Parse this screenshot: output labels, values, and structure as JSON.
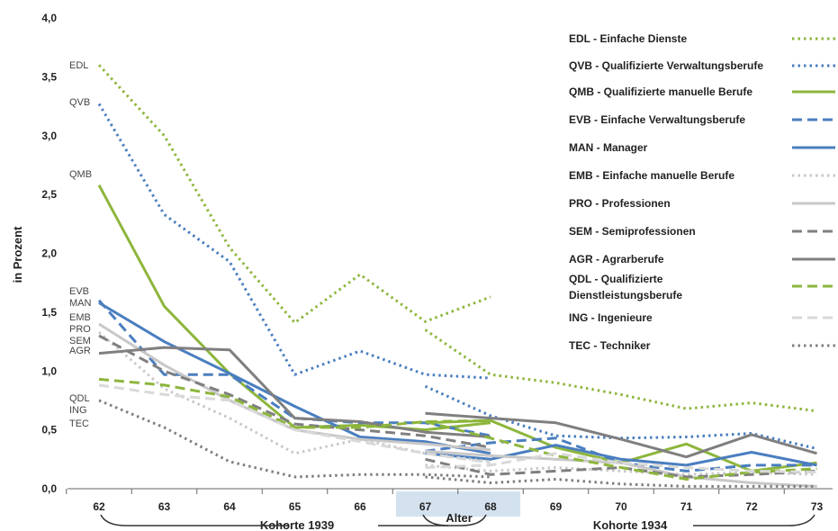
{
  "chart_data": {
    "type": "line",
    "ylabel": "in Prozent",
    "ylim": [
      0,
      4
    ],
    "y_ticks": [
      "0,0",
      "0,5",
      "1,0",
      "1,5",
      "2,0",
      "2,5",
      "3,0",
      "3,5",
      "4,0"
    ],
    "x": [
      62,
      63,
      64,
      65,
      66,
      67,
      68,
      69,
      70,
      71,
      72,
      73
    ],
    "x_ticks": [
      "62",
      "63",
      "64",
      "65",
      "66",
      "67",
      "68",
      "69",
      "70",
      "71",
      "72",
      "73"
    ],
    "cohort_labels": [
      "Kohorte 1939",
      "Kohorte 1934"
    ],
    "alter_label": "Alter",
    "grid": "off",
    "legend_position": "right",
    "series": [
      {
        "code": "EDL",
        "name": "EDL - Einfache Dienste",
        "color": "#8db63c",
        "style": "dotted",
        "in_chart_label": "EDL",
        "cohort1939": {
          "x": [
            62,
            63,
            64,
            65,
            66,
            67,
            68
          ],
          "y": [
            3.6,
            3.0,
            2.05,
            1.41,
            1.82,
            1.42,
            1.63
          ]
        },
        "cohort1934": {
          "x": [
            67,
            68,
            69,
            70,
            71,
            72,
            73
          ],
          "y": [
            1.35,
            0.97,
            0.9,
            0.8,
            0.68,
            0.73,
            0.66
          ]
        }
      },
      {
        "code": "QVB",
        "name": "QVB - Qualifizierte Verwaltungsberufe",
        "color": "#4a7ebf",
        "style": "dotted",
        "in_chart_label": "QVB",
        "cohort1939": {
          "x": [
            62,
            63,
            64,
            65,
            66,
            67,
            68
          ],
          "y": [
            3.27,
            2.33,
            1.93,
            0.97,
            1.17,
            0.97,
            0.94
          ]
        },
        "cohort1934": {
          "x": [
            67,
            68,
            69,
            70,
            71,
            72,
            73
          ],
          "y": [
            0.87,
            0.62,
            0.45,
            0.43,
            0.44,
            0.47,
            0.34
          ]
        }
      },
      {
        "code": "QMB",
        "name": "QMB - Qualifizierte manuelle Berufe",
        "color": "#8db63c",
        "style": "solid",
        "in_chart_label": "QMB",
        "cohort1939": {
          "x": [
            62,
            63,
            64,
            65,
            66,
            67,
            68
          ],
          "y": [
            2.58,
            1.55,
            0.98,
            0.52,
            0.54,
            0.5,
            0.56
          ]
        },
        "cohort1934": {
          "x": [
            67,
            68,
            69,
            70,
            71,
            72,
            73
          ],
          "y": [
            0.56,
            0.58,
            0.35,
            0.22,
            0.38,
            0.15,
            0.22
          ]
        }
      },
      {
        "code": "EVB",
        "name": "EVB - Einfache Verwaltungsberufe",
        "color": "#4a7ebf",
        "style": "dashed",
        "in_chart_label": "EVB",
        "cohort1939": {
          "x": [
            62,
            63,
            64,
            65,
            66,
            67,
            68
          ],
          "y": [
            1.6,
            0.97,
            0.97,
            0.6,
            0.56,
            0.56,
            0.45
          ]
        },
        "cohort1934": {
          "x": [
            67,
            68,
            69,
            70,
            71,
            72,
            73
          ],
          "y": [
            0.32,
            0.39,
            0.43,
            0.22,
            0.15,
            0.2,
            0.2
          ]
        }
      },
      {
        "code": "MAN",
        "name": "MAN - Manager",
        "color": "#4a7ebf",
        "style": "solid",
        "in_chart_label": "MAN",
        "cohort1939": {
          "x": [
            62,
            63,
            64,
            65,
            66,
            67,
            68
          ],
          "y": [
            1.58,
            1.25,
            0.98,
            0.7,
            0.44,
            0.4,
            0.3
          ]
        },
        "cohort1934": {
          "x": [
            67,
            68,
            69,
            70,
            71,
            72,
            73
          ],
          "y": [
            0.3,
            0.25,
            0.37,
            0.25,
            0.2,
            0.31,
            0.2
          ]
        }
      },
      {
        "code": "EMB",
        "name": "EMB - Einfache manuelle Berufe",
        "color": "#c8c8c8",
        "style": "dotted",
        "in_chart_label": "EMB",
        "cohort1939": {
          "x": [
            62,
            63,
            64,
            65,
            66,
            67,
            68
          ],
          "y": [
            1.33,
            0.85,
            0.6,
            0.3,
            0.42,
            0.3,
            0.23
          ]
        },
        "cohort1934": {
          "x": [
            67,
            68,
            69,
            70,
            71,
            72,
            73
          ],
          "y": [
            0.2,
            0.15,
            0.18,
            0.15,
            0.12,
            0.14,
            0.12
          ]
        }
      },
      {
        "code": "PRO",
        "name": "PRO - Professionen",
        "color": "#c8c8c8",
        "style": "solid",
        "in_chart_label": "PRO",
        "cohort1939": {
          "x": [
            62,
            63,
            64,
            65,
            66,
            67,
            68
          ],
          "y": [
            1.4,
            1.05,
            0.75,
            0.5,
            0.42,
            0.38,
            0.33
          ]
        },
        "cohort1934": {
          "x": [
            67,
            68,
            69,
            70,
            71,
            72,
            73
          ],
          "y": [
            0.32,
            0.28,
            0.25,
            0.22,
            0.1,
            0.05,
            0.02
          ]
        }
      },
      {
        "code": "SEM",
        "name": "SEM - Semiprofessionen",
        "color": "#7f7f7f",
        "style": "dashed",
        "in_chart_label": "SEM",
        "cohort1939": {
          "x": [
            62,
            63,
            64,
            65,
            66,
            67,
            68
          ],
          "y": [
            1.3,
            1.0,
            0.8,
            0.55,
            0.5,
            0.45,
            0.35
          ]
        },
        "cohort1934": {
          "x": [
            67,
            68,
            69,
            70,
            71,
            72,
            73
          ],
          "y": [
            0.25,
            0.12,
            0.15,
            0.18,
            0.1,
            0.12,
            0.15
          ]
        }
      },
      {
        "code": "AGR",
        "name": "AGR - Agrarberufe",
        "color": "#7f7f7f",
        "style": "solid",
        "in_chart_label": "AGR",
        "cohort1939": {
          "x": [
            62,
            63,
            64,
            65,
            66,
            67,
            68
          ],
          "y": [
            1.15,
            1.2,
            1.18,
            0.6,
            0.57,
            0.48,
            0.44
          ]
        },
        "cohort1934": {
          "x": [
            67,
            68,
            69,
            70,
            71,
            72,
            73
          ],
          "y": [
            0.64,
            0.6,
            0.56,
            0.42,
            0.27,
            0.46,
            0.3
          ]
        }
      },
      {
        "code": "QDL",
        "name": "QDL - Qualifizierte Dienstleistungsberufe",
        "name_lines": [
          "QDL - Qualifizierte",
          "Dienstleistungsberufe"
        ],
        "color": "#8db63c",
        "style": "dashed",
        "in_chart_label": "QDL",
        "cohort1939": {
          "x": [
            62,
            63,
            64,
            65,
            66,
            67,
            68
          ],
          "y": [
            0.93,
            0.88,
            0.78,
            0.52,
            0.52,
            0.57,
            0.58
          ]
        },
        "cohort1934": {
          "x": [
            67,
            68,
            69,
            70,
            71,
            72,
            73
          ],
          "y": [
            0.57,
            0.43,
            0.28,
            0.18,
            0.08,
            0.14,
            0.17
          ]
        }
      },
      {
        "code": "ING",
        "name": "ING - Ingenieure",
        "color": "#d9d9d9",
        "style": "dashed",
        "in_chart_label": "ING",
        "cohort1939": {
          "x": [
            62,
            63,
            64,
            65,
            66,
            67,
            68
          ],
          "y": [
            0.88,
            0.8,
            0.75,
            0.5,
            0.4,
            0.3,
            0.22
          ]
        },
        "cohort1934": {
          "x": [
            67,
            68,
            69,
            70,
            71,
            72,
            73
          ],
          "y": [
            0.18,
            0.2,
            0.3,
            0.22,
            0.18,
            0.15,
            0.14
          ]
        }
      },
      {
        "code": "TEC",
        "name": "TEC - Techniker",
        "color": "#7f7f7f",
        "style": "dotted",
        "in_chart_label": "TEC",
        "cohort1939": {
          "x": [
            62,
            63,
            64,
            65,
            66,
            67,
            68
          ],
          "y": [
            0.75,
            0.52,
            0.23,
            0.1,
            0.12,
            0.12,
            0.1
          ]
        },
        "cohort1934": {
          "x": [
            67,
            68,
            69,
            70,
            71,
            72,
            73
          ],
          "y": [
            0.1,
            0.05,
            0.08,
            0.04,
            0.02,
            0.02,
            0.02
          ]
        }
      }
    ]
  }
}
